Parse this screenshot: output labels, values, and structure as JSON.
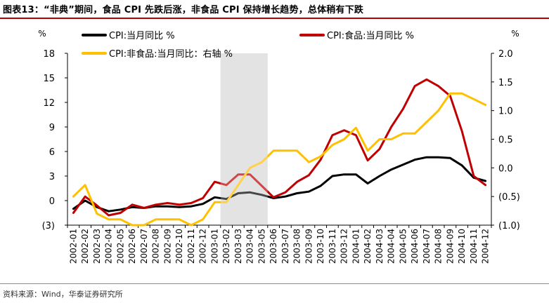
{
  "figure": {
    "title": "图表13：“非典”期间，食品 CPI 先跌后涨，非食品 CPI 保持增长趋势，总体稍有下跌",
    "source": "资料来源：Wind，华泰证券研究所"
  },
  "chart_data": {
    "type": "line",
    "left_axis": {
      "unit": "%",
      "ylim": [
        -3,
        18
      ],
      "ticks": [
        18,
        15,
        12,
        9,
        6,
        3,
        0
      ],
      "tick_labels": [
        "18",
        "15",
        "12",
        "9",
        "6",
        "3",
        "0",
        "(3)"
      ]
    },
    "right_axis": {
      "unit": "%",
      "ylim": [
        -1.0,
        2.0
      ],
      "ticks": [
        2.0,
        1.5,
        1.0,
        0.5,
        0.0
      ],
      "tick_labels": [
        "2.0",
        "1.5",
        "1.0",
        "0.5",
        "0.0",
        "(0.5)",
        "(1.0)"
      ]
    },
    "categories": [
      "2002-01",
      "2002-02",
      "2002-03",
      "2002-04",
      "2002-05",
      "2002-06",
      "2002-07",
      "2002-08",
      "2002-09",
      "2002-10",
      "2002-11",
      "2002-12",
      "2003-01",
      "2003-02",
      "2003-03",
      "2003-04",
      "2003-05",
      "2003-06",
      "2003-07",
      "2003-08",
      "2003-09",
      "2003-10",
      "2003-11",
      "2003-12",
      "2004-01",
      "2004-02",
      "2004-03",
      "2004-04",
      "2004-05",
      "2004-06",
      "2004-07",
      "2004-08",
      "2004-09",
      "2004-10",
      "2004-11",
      "2004-12"
    ],
    "x_tick_labels": [
      "2002-01",
      "2002-02",
      "2002-03",
      "2002-04",
      "2002-05",
      "2002-06",
      "2002-07",
      "2002-08",
      "2002-09",
      "2002-10",
      "2002-11",
      "2002-12",
      "2003-01",
      "2003-02",
      "2003-03",
      "2003-04",
      "2003-05",
      "2003-06",
      "2003-07",
      "2003-08",
      "2003-09",
      "2003-10",
      "2003-11",
      "2003-12",
      "2004-01",
      "2004-02",
      "2004-03",
      "2004-04",
      "2004-05",
      "2004-06",
      "2004-07",
      "2004-08",
      "2004-09",
      "2004-10",
      "2004-11",
      "2004-12"
    ],
    "shaded_range": {
      "from": "2003-02",
      "to": "2003-05",
      "color": "#d9d9d9"
    },
    "series": [
      {
        "name": "CPI:当月同比 %",
        "color": "#000000",
        "axis": "left",
        "values": [
          -1.0,
          0.0,
          -0.8,
          -1.3,
          -1.1,
          -0.8,
          -0.9,
          -0.7,
          -0.7,
          -0.8,
          -0.7,
          -0.4,
          0.4,
          0.2,
          0.9,
          1.0,
          0.7,
          0.3,
          0.5,
          0.9,
          1.1,
          1.8,
          3.0,
          3.2,
          3.2,
          2.1,
          3.0,
          3.8,
          4.4,
          5.0,
          5.3,
          5.3,
          5.2,
          4.3,
          2.8,
          2.4
        ]
      },
      {
        "name": "CPI:食品:当月同比 %",
        "color": "#c00000",
        "axis": "left",
        "values": [
          -1.5,
          0.5,
          -0.6,
          -1.8,
          -1.5,
          -0.5,
          -0.9,
          -0.5,
          -0.3,
          -0.5,
          -0.3,
          0.3,
          2.3,
          1.9,
          3.2,
          3.2,
          1.8,
          0.4,
          1.0,
          2.3,
          3.1,
          5.0,
          8.0,
          8.6,
          8.0,
          4.9,
          6.3,
          9.0,
          11.2,
          14.0,
          14.8,
          14.0,
          12.8,
          8.5,
          3.0,
          1.9
        ]
      },
      {
        "name": "CPI:非食品:当月同比：右轴 %",
        "color": "#ffc000",
        "axis": "right",
        "values": [
          -0.5,
          -0.3,
          -0.8,
          -0.9,
          -0.9,
          -1.0,
          -1.0,
          -0.9,
          -0.9,
          -0.9,
          -1.0,
          -0.9,
          -0.6,
          -0.6,
          -0.3,
          0.0,
          0.1,
          0.3,
          0.3,
          0.3,
          0.1,
          0.2,
          0.4,
          0.5,
          0.7,
          0.3,
          0.5,
          0.5,
          0.6,
          0.6,
          0.8,
          1.0,
          1.3,
          1.3,
          1.2,
          1.1
        ]
      }
    ],
    "legend": {
      "placement": "top",
      "labels": [
        "CPI:当月同比 %",
        "CPI:食品:当月同比 %",
        "CPI:非食品:当月同比：右轴 %"
      ]
    }
  }
}
